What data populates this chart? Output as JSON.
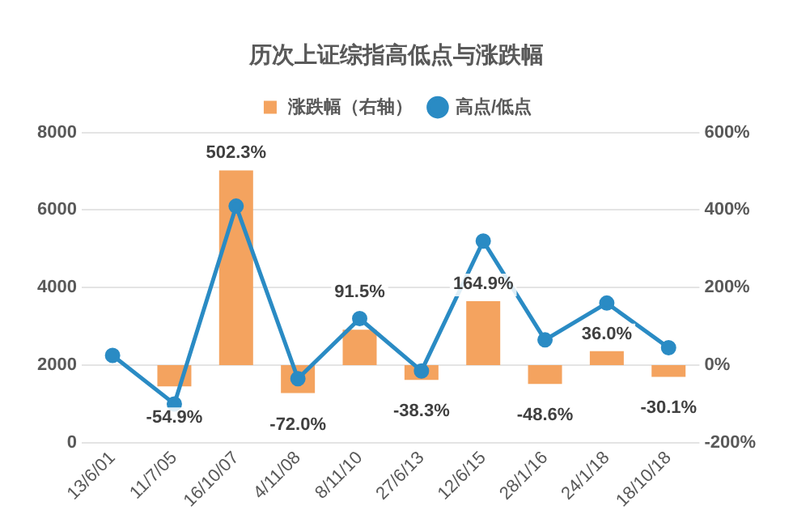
{
  "chart_data": {
    "type": "bar",
    "title": "历次上证综指高低点与涨跌幅",
    "categories": [
      "13/6/01",
      "11/7/05",
      "16/10/07",
      "4/11/08",
      "8/11/10",
      "27/6/13",
      "12/6/15",
      "28/1/16",
      "24/1/18",
      "18/10/18"
    ],
    "series": [
      {
        "name": "涨跌幅（右轴）",
        "axis": "y2",
        "color": "#f4a35f",
        "values": [
          null,
          -54.9,
          502.3,
          -72.0,
          91.5,
          -38.3,
          164.9,
          -48.6,
          36.0,
          -30.1
        ],
        "value_labels": [
          null,
          "-54.9%",
          "502.3%",
          "-72.0%",
          "91.5%",
          "-38.3%",
          "164.9%",
          "-48.6%",
          "36.0%",
          "-30.1%"
        ]
      },
      {
        "name": "高点/低点",
        "type": "line",
        "color": "#2a8bc4",
        "marker": "circle",
        "values": [
          2250,
          1000,
          6100,
          1650,
          3200,
          1850,
          5200,
          2650,
          3600,
          2450
        ]
      }
    ],
    "ylim": [
      0,
      8000
    ],
    "yticks": [
      0,
      2000,
      4000,
      6000,
      8000
    ],
    "y2lim": [
      -200,
      600
    ],
    "y2ticks": [
      {
        "value": -200,
        "label": "-200%"
      },
      {
        "value": 0,
        "label": "0%"
      },
      {
        "value": 200,
        "label": "200%"
      },
      {
        "value": 400,
        "label": "400%"
      },
      {
        "value": 600,
        "label": "600%"
      }
    ],
    "grid": "y",
    "legend": "top"
  }
}
